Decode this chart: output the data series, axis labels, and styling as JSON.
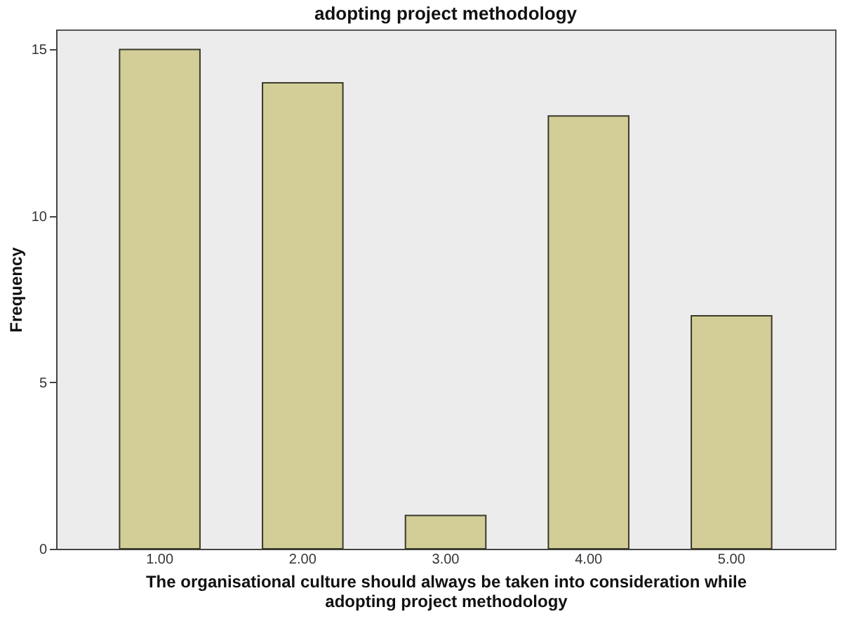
{
  "chart_data": {
    "type": "bar",
    "title": "adopting project methodology",
    "xlabel": "The organisational culture should always be taken into consideration while adopting project methodology",
    "ylabel": "Frequency",
    "categories": [
      "1.00",
      "2.00",
      "3.00",
      "4.00",
      "5.00"
    ],
    "values": [
      15,
      14,
      1,
      13,
      7
    ],
    "color": "#d3cd98",
    "ylim": [
      0,
      15.6
    ],
    "yticks": [
      0,
      5,
      10,
      15
    ],
    "grid": false
  }
}
